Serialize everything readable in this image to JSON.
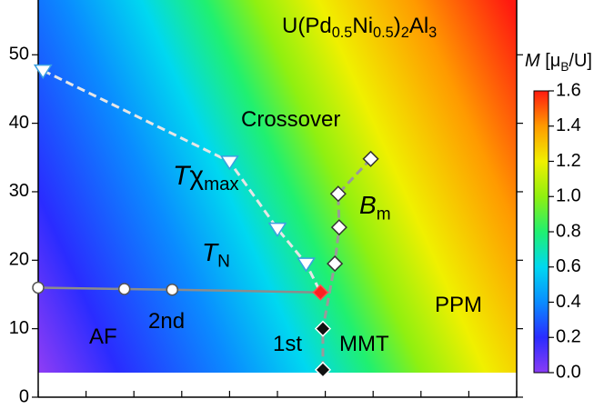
{
  "chart_data": {
    "type": "phase-diagram",
    "xlim": [
      0,
      10
    ],
    "xticks": [
      0,
      1,
      2,
      3,
      4,
      5,
      6,
      7,
      8,
      9,
      10
    ],
    "ylim": [
      0,
      58
    ],
    "yticks": [
      0,
      10,
      20,
      30,
      40,
      50
    ],
    "colorbar": {
      "label": [
        {
          "text": "M",
          "italic": true
        },
        {
          "text": " [μ"
        },
        {
          "text": "B",
          "sub": true
        },
        {
          "text": "/U]"
        }
      ],
      "lim": [
        0,
        1.6
      ],
      "ticks": [
        {
          "value": 0,
          "label": "0.0"
        },
        0.2,
        0.4,
        0.6,
        0.8,
        {
          "value": 1,
          "label": "1.0"
        },
        1.2,
        1.4,
        1.6
      ],
      "colors": [
        "#8a3cf5",
        "#2a2cff",
        "#0a8cff",
        "#00d8f0",
        "#20f070",
        "#90f010",
        "#f0f000",
        "#ff9a00",
        "#ff1a10"
      ]
    },
    "series": [
      {
        "marker": "circle",
        "color": "#ffffff",
        "edge": "#555555",
        "line": "solid",
        "line_color": "#8c8c8c",
        "x": [
          0,
          1.8,
          2.8
        ],
        "values": [
          16,
          15.8,
          15.7
        ]
      },
      {
        "marker": "diamond",
        "color": "#ff2020",
        "edge": "#ff5050",
        "x": [
          5.9
        ],
        "values": [
          15.3
        ]
      },
      {
        "marker": "triangle-down",
        "color": "#ffffff",
        "edge": "#3aa0e0",
        "line": "dashed",
        "line_color": "#e6e6e6",
        "x": [
          0.1,
          4.0,
          5.0,
          5.6
        ],
        "values": [
          47.7,
          34.4,
          24.6,
          19.5
        ]
      },
      {
        "marker": "diamond",
        "color": "#ffffff",
        "edge": "#333333",
        "line": "dashed",
        "line_color": "#9a9a9a",
        "x": [
          6.95,
          6.27,
          6.29,
          6.2
        ],
        "values": [
          34.8,
          29.7,
          24.8,
          19.5
        ]
      },
      {
        "marker": "diamond",
        "color": "#111111",
        "edge": "#ffffff",
        "x": [
          5.95,
          5.95
        ],
        "values": [
          10,
          4
        ]
      }
    ],
    "annotations": [
      {
        "color": "#000000",
        "parts": [
          {
            "text": "U(Pd"
          },
          {
            "text": "0.5",
            "sub": true
          },
          {
            "text": "Ni"
          },
          {
            "text": "0.5",
            "sub": true
          },
          {
            "text": ")"
          },
          {
            "text": "2",
            "sub": true
          },
          {
            "text": "Al"
          },
          {
            "text": "3",
            "sub": true
          }
        ]
      },
      {
        "color": "#000000",
        "parts": [
          {
            "text": "Crossover"
          }
        ]
      },
      {
        "color": "#000000",
        "parts": [
          {
            "text": "T",
            "italic": true
          },
          {
            "text": "χ"
          },
          {
            "text": "max",
            "sub": true
          }
        ]
      },
      {
        "color": "#000000",
        "parts": [
          {
            "text": "B",
            "italic": true
          },
          {
            "text": "m",
            "sub": true
          }
        ]
      },
      {
        "color": "#000000",
        "parts": [
          {
            "text": "T",
            "italic": true
          },
          {
            "text": "N",
            "sub": true
          }
        ]
      },
      {
        "color": "#dcdcdc",
        "parts": [
          {
            "text": "AF"
          }
        ]
      },
      {
        "color": "#c8c8c8",
        "parts": [
          {
            "text": "2nd"
          }
        ]
      },
      {
        "color": "#000000",
        "parts": [
          {
            "text": "1st"
          }
        ]
      },
      {
        "color": "#000000",
        "parts": [
          {
            "text": "MMT"
          }
        ]
      },
      {
        "color": "#000000",
        "parts": [
          {
            "text": "PPM"
          }
        ]
      }
    ]
  }
}
